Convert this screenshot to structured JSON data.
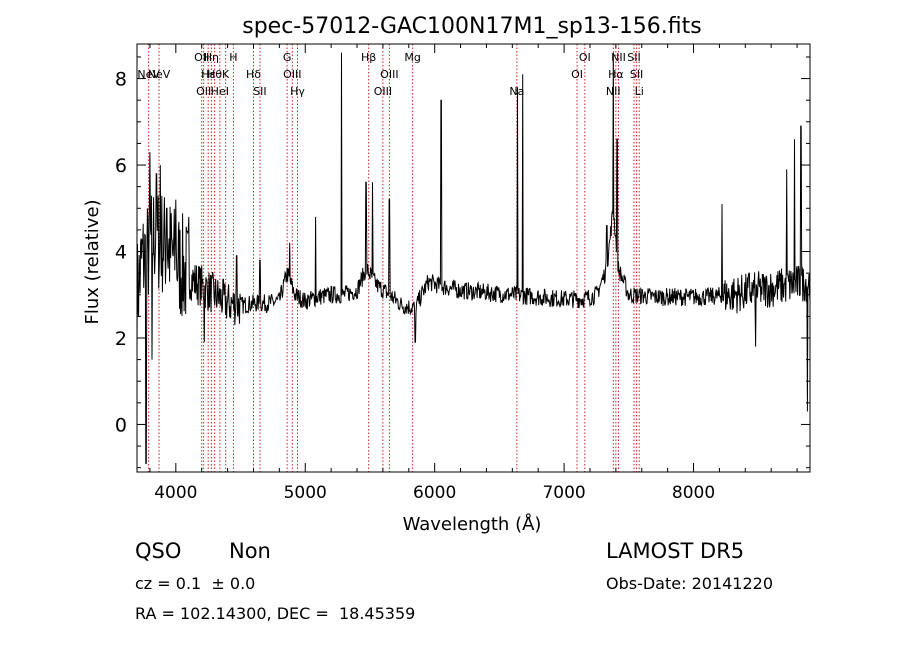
{
  "chart_data": {
    "type": "line",
    "title": "spec-57012-GAC100N17M1_sp13-156.fits",
    "xlabel": "Wavelength (Å)",
    "ylabel": "Flux (relative)",
    "xlim": [
      3700,
      8900
    ],
    "ylim": [
      -1.1,
      8.8
    ],
    "xticks": [
      4000,
      5000,
      6000,
      7000,
      8000
    ],
    "xtick_labels": [
      "4000",
      "5000",
      "6000",
      "7000",
      "8000"
    ],
    "yticks": [
      0,
      2,
      4,
      6,
      8
    ],
    "ytick_labels": [
      "0",
      "2",
      "4",
      "6",
      "8"
    ],
    "grid": false,
    "line_color": "#000000",
    "marker_color": "#cc2222",
    "spectrum_anchors": [
      [
        3700,
        3.0
      ],
      [
        3740,
        3.8
      ],
      [
        3780,
        3.9
      ],
      [
        3830,
        4.4
      ],
      [
        3900,
        4.2
      ],
      [
        4000,
        3.8
      ],
      [
        4100,
        3.4
      ],
      [
        4200,
        3.2
      ],
      [
        4300,
        3.0
      ],
      [
        4400,
        2.8
      ],
      [
        4500,
        2.75
      ],
      [
        4600,
        2.8
      ],
      [
        4700,
        2.8
      ],
      [
        4800,
        2.85
      ],
      [
        4860,
        3.5
      ],
      [
        4920,
        3.0
      ],
      [
        5000,
        2.85
      ],
      [
        5100,
        2.95
      ],
      [
        5200,
        3.0
      ],
      [
        5300,
        3.0
      ],
      [
        5400,
        3.1
      ],
      [
        5470,
        3.6
      ],
      [
        5560,
        3.2
      ],
      [
        5650,
        3.0
      ],
      [
        5750,
        2.75
      ],
      [
        5850,
        2.7
      ],
      [
        5950,
        3.3
      ],
      [
        6050,
        3.2
      ],
      [
        6200,
        3.1
      ],
      [
        6400,
        3.05
      ],
      [
        6600,
        3.0
      ],
      [
        6800,
        2.95
      ],
      [
        7000,
        2.9
      ],
      [
        7150,
        2.9
      ],
      [
        7250,
        3.0
      ],
      [
        7330,
        3.6
      ],
      [
        7380,
        5.0
      ],
      [
        7420,
        3.6
      ],
      [
        7500,
        3.0
      ],
      [
        7700,
        2.95
      ],
      [
        7900,
        2.95
      ],
      [
        8100,
        2.95
      ],
      [
        8300,
        3.0
      ],
      [
        8500,
        3.1
      ],
      [
        8700,
        3.2
      ],
      [
        8900,
        3.3
      ]
    ],
    "spikes": [
      [
        3770,
        -0.9
      ],
      [
        3800,
        6.3
      ],
      [
        3815,
        1.5
      ],
      [
        3850,
        5.8
      ],
      [
        3880,
        6.0
      ],
      [
        3930,
        5.0
      ],
      [
        4000,
        5.2
      ],
      [
        4100,
        4.8
      ],
      [
        4220,
        1.9
      ],
      [
        4470,
        3.9
      ],
      [
        4650,
        3.8
      ],
      [
        4880,
        4.2
      ],
      [
        5080,
        4.8
      ],
      [
        5280,
        8.6
      ],
      [
        5470,
        5.6
      ],
      [
        5520,
        5.6
      ],
      [
        5650,
        5.2
      ],
      [
        5850,
        1.9
      ],
      [
        6050,
        7.5
      ],
      [
        6640,
        7.8
      ],
      [
        6680,
        8.1
      ],
      [
        7330,
        4.6
      ],
      [
        7380,
        8.6
      ],
      [
        7410,
        6.6
      ],
      [
        8220,
        5.1
      ],
      [
        8430,
        3.5
      ],
      [
        8480,
        1.8
      ],
      [
        8720,
        5.9
      ],
      [
        8780,
        6.6
      ],
      [
        8830,
        6.9
      ],
      [
        8880,
        0.3
      ]
    ],
    "lines": [
      {
        "name": "NeV",
        "x": 3790,
        "row": 1
      },
      {
        "name": "NeV",
        "x": 3870,
        "row": 2
      },
      {
        "name": "OII",
        "x": 4200,
        "row": 0
      },
      {
        "name": "OII",
        "x": 4215,
        "row": 3
      },
      {
        "name": "Hε",
        "x": 4250,
        "row": 2
      },
      {
        "name": "Hη",
        "x": 4275,
        "row": 0
      },
      {
        "name": "Hθ",
        "x": 4300,
        "row": 2
      },
      {
        "name": "HeI",
        "x": 4340,
        "row": 3
      },
      {
        "name": "K",
        "x": 4385,
        "row": 2
      },
      {
        "name": "H",
        "x": 4445,
        "row": 0
      },
      {
        "name": "Hδ",
        "x": 4600,
        "row": 2
      },
      {
        "name": "SII",
        "x": 4650,
        "row": 3
      },
      {
        "name": "G",
        "x": 4860,
        "row": 0
      },
      {
        "name": "OIII",
        "x": 4900,
        "row": 2
      },
      {
        "name": "Hγ",
        "x": 4940,
        "row": 3
      },
      {
        "name": "Hβ",
        "x": 5490,
        "row": 0
      },
      {
        "name": "OIII",
        "x": 5600,
        "row": 3
      },
      {
        "name": "OIII",
        "x": 5650,
        "row": 2
      },
      {
        "name": "Mg",
        "x": 5830,
        "row": 0
      },
      {
        "name": "Na",
        "x": 6635,
        "row": 3
      },
      {
        "name": "OI",
        "x": 7100,
        "row": 2
      },
      {
        "name": "OI",
        "x": 7160,
        "row": 0
      },
      {
        "name": "NII",
        "x": 7380,
        "row": 3
      },
      {
        "name": "Hα",
        "x": 7400,
        "row": 2
      },
      {
        "name": "NII",
        "x": 7420,
        "row": 0
      },
      {
        "name": "SII",
        "x": 7540,
        "row": 0
      },
      {
        "name": "SII",
        "x": 7560,
        "row": 2
      },
      {
        "name": "Li",
        "x": 7580,
        "row": 3
      }
    ]
  },
  "info": {
    "class": "QSO",
    "subclass": "Non",
    "survey": "LAMOST DR5",
    "cz": "cz = 0.1  ± 0.0",
    "obs_date": "Obs-Date: 20141220",
    "coords": "RA = 102.14300, DEC =  18.45359"
  }
}
